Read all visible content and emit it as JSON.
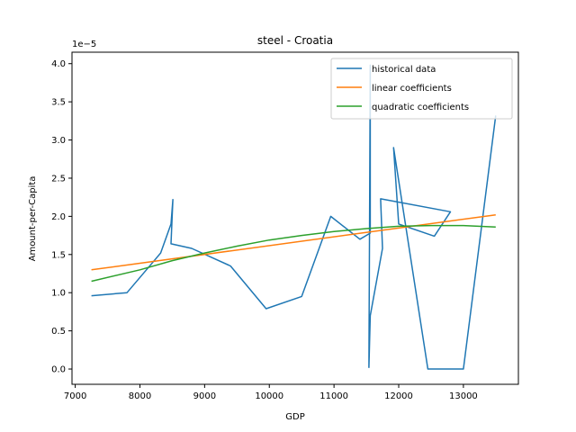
{
  "chart_data": {
    "type": "line",
    "title": "steel - Croatia",
    "xlabel": "GDP",
    "ylabel": "Amount-per-Capita",
    "y_multiplier_label": "1e−5",
    "xlim": [
      6950,
      13850
    ],
    "ylim": [
      -0.2,
      4.15
    ],
    "x_ticks": [
      7000,
      8000,
      9000,
      10000,
      11000,
      12000,
      13000
    ],
    "y_ticks": [
      0.0,
      0.5,
      1.0,
      1.5,
      2.0,
      2.5,
      3.0,
      3.5,
      4.0
    ],
    "y_tick_labels": [
      "0.0",
      "0.5",
      "1.0",
      "1.5",
      "2.0",
      "2.5",
      "3.0",
      "3.5",
      "4.0"
    ],
    "legend_position": "top-right",
    "series": [
      {
        "name": "historical data",
        "color": "#1f77b4",
        "x": [
          7250,
          7800,
          8200,
          8320,
          8480,
          8510,
          8480,
          8800,
          9400,
          9950,
          10500,
          10950,
          11400,
          11560,
          11560,
          11540,
          11560,
          11750,
          11720,
          12800,
          12550,
          12000,
          11920,
          12450,
          13000,
          13500
        ],
        "y": [
          0.96,
          1.0,
          1.4,
          1.52,
          1.9,
          2.22,
          1.64,
          1.58,
          1.35,
          0.79,
          0.95,
          2.0,
          1.7,
          1.78,
          3.98,
          0.02,
          0.7,
          1.58,
          2.23,
          2.06,
          1.74,
          1.9,
          2.9,
          0.0,
          0.0,
          3.32
        ]
      },
      {
        "name": "linear coefficients",
        "color": "#ff7f0e",
        "x": [
          7250,
          13500
        ],
        "y": [
          1.3,
          2.02
        ]
      },
      {
        "name": "quadratic coefficients",
        "color": "#2ca02c",
        "x": [
          7250,
          8000,
          8500,
          9000,
          9500,
          10000,
          10500,
          11000,
          11500,
          12000,
          12500,
          13000,
          13500
        ],
        "y": [
          1.15,
          1.3,
          1.42,
          1.52,
          1.61,
          1.69,
          1.75,
          1.8,
          1.84,
          1.87,
          1.88,
          1.88,
          1.86
        ]
      }
    ]
  }
}
